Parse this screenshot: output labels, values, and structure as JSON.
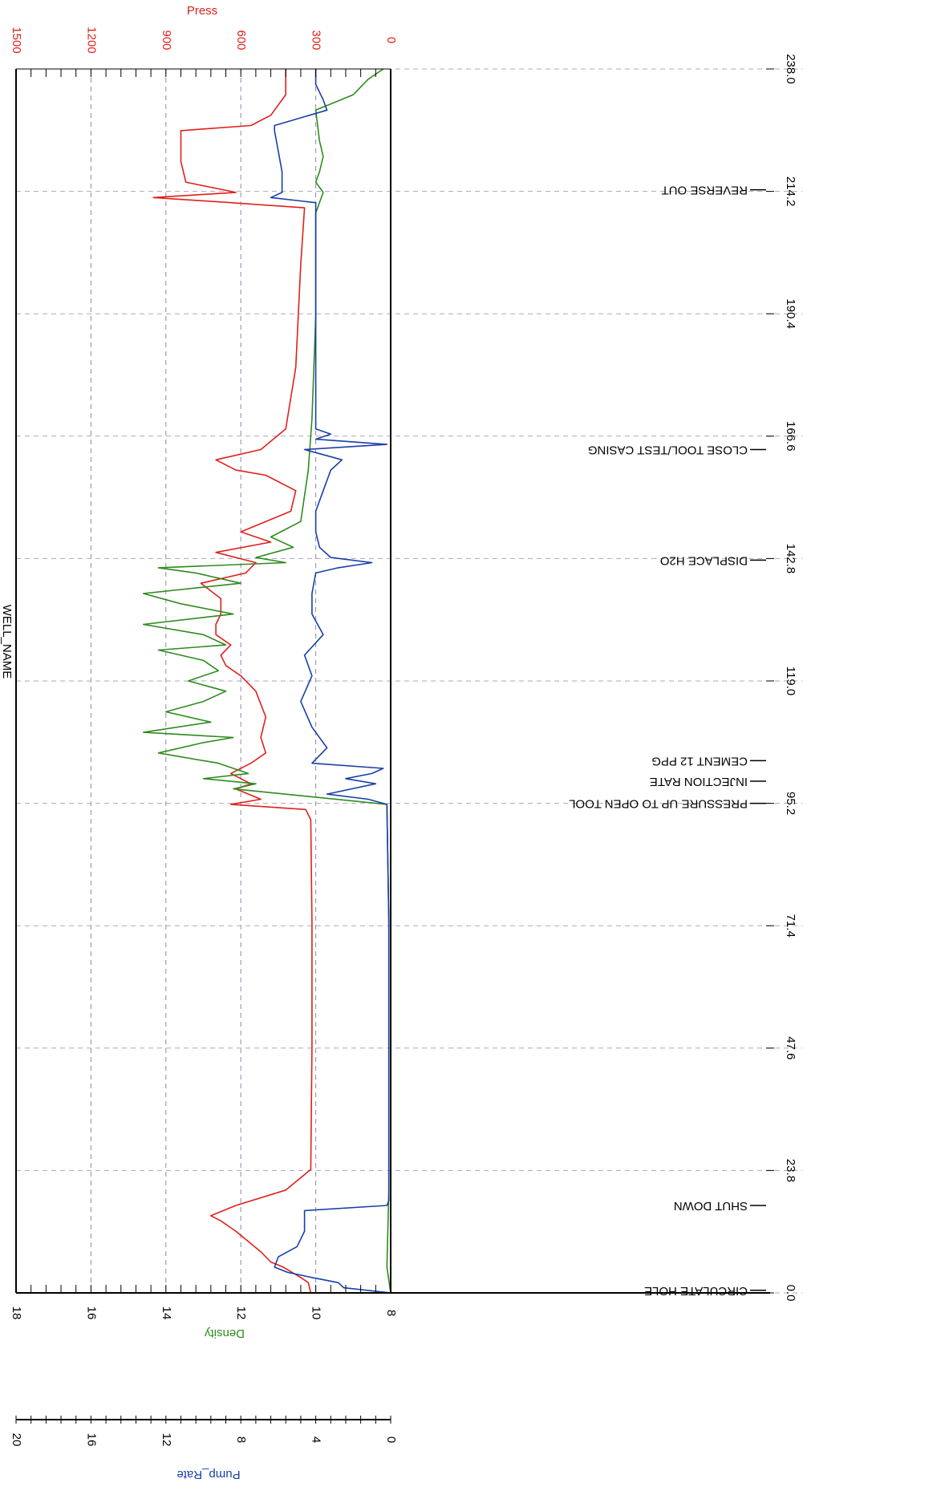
{
  "chart_data": {
    "type": "line",
    "title": "WELL_NAME",
    "rotated": "chart drawn rotated 90 degrees; time axis runs vertically",
    "x_axis": {
      "label": "",
      "ticks": [
        "0.0",
        "23.8",
        "47.6",
        "71.4",
        "95.2",
        "119.0",
        "142.8",
        "166.6",
        "190.4",
        "214.2",
        "238.0"
      ],
      "xlim": [
        0,
        238
      ]
    },
    "axes": {
      "press": {
        "label": "Press",
        "ticks": [
          "0",
          "300",
          "600",
          "900",
          "1200",
          "1500"
        ],
        "range": [
          0,
          1500
        ],
        "color": "#e0201c"
      },
      "density": {
        "label": "Density",
        "ticks": [
          "8",
          "10",
          "12",
          "14",
          "16",
          "18"
        ],
        "range": [
          8,
          18
        ],
        "color": "#2e8b1e"
      },
      "pump_rate": {
        "label": "Pump_Rate",
        "ticks": [
          "0",
          "4",
          "8",
          "12",
          "16",
          "20"
        ],
        "range": [
          0,
          20
        ],
        "color": "#1a3fa8"
      }
    },
    "grid": true,
    "series": [
      {
        "name": "Press",
        "color": "#e0201c",
        "axis": "press",
        "x": [
          0,
          2,
          3,
          5,
          6,
          8,
          10,
          12,
          14,
          15,
          17,
          20,
          24,
          48,
          72,
          92,
          94,
          95,
          96,
          98,
          99,
          101,
          103,
          105,
          108,
          112,
          117,
          120,
          122,
          124,
          126,
          128,
          130,
          132,
          135,
          138,
          140,
          142,
          144,
          146,
          148,
          152,
          156,
          159,
          160,
          162,
          164,
          168,
          180,
          200,
          211,
          212,
          213,
          214,
          216,
          220,
          226,
          227,
          229,
          233,
          238
        ],
        "values": [
          320,
          330,
          360,
          430,
          480,
          520,
          570,
          620,
          680,
          720,
          620,
          420,
          320,
          315,
          315,
          320,
          340,
          640,
          520,
          620,
          560,
          640,
          560,
          500,
          520,
          500,
          540,
          600,
          660,
          680,
          640,
          700,
          700,
          680,
          680,
          760,
          580,
          540,
          700,
          480,
          600,
          400,
          380,
          500,
          620,
          700,
          520,
          420,
          380,
          360,
          345,
          640,
          950,
          620,
          820,
          840,
          840,
          560,
          480,
          420,
          420
        ]
      },
      {
        "name": "Density",
        "color": "#2e8b1e",
        "axis": "density",
        "x": [
          0,
          5,
          20,
          48,
          72,
          95,
          98,
          99,
          100,
          101,
          103,
          105,
          107,
          108,
          109,
          111,
          113,
          115,
          117,
          119,
          121,
          123,
          125,
          126,
          128,
          130,
          132,
          134,
          136,
          138,
          140,
          141,
          142,
          143,
          145,
          147,
          150,
          160,
          170,
          190,
          210,
          214,
          216,
          218,
          221,
          224,
          230,
          233,
          236,
          238
        ],
        "values": [
          8.0,
          8.1,
          8.05,
          8.05,
          8.05,
          8.1,
          12.2,
          11.6,
          13.0,
          11.8,
          12.6,
          14.2,
          13.0,
          12.2,
          14.6,
          12.8,
          14.0,
          13.0,
          12.4,
          13.4,
          12.6,
          13.0,
          14.2,
          12.4,
          13.0,
          14.6,
          12.2,
          13.6,
          14.6,
          12.0,
          13.2,
          14.2,
          10.8,
          11.6,
          10.6,
          11.2,
          10.4,
          10.2,
          10.1,
          10.0,
          10.0,
          9.8,
          10.0,
          9.9,
          9.8,
          9.9,
          10.0,
          9.0,
          8.6,
          8.2
        ]
      },
      {
        "name": "Pump_Rate",
        "color": "#1a3fa8",
        "axis": "pump_rate",
        "x": [
          0,
          1,
          2,
          3,
          4,
          5,
          7,
          9,
          12,
          16,
          17,
          18,
          24,
          48,
          72,
          95,
          96,
          97,
          99,
          100,
          101,
          102,
          103,
          106,
          110,
          115,
          120,
          124,
          128,
          132,
          136,
          140,
          141,
          142,
          143,
          145,
          148,
          152,
          156,
          160,
          162,
          164,
          165,
          166,
          167,
          168,
          180,
          200,
          212,
          213,
          214,
          218,
          222,
          226,
          227,
          230,
          232,
          235,
          238
        ],
        "values": [
          0,
          2.5,
          2.8,
          4.2,
          5.5,
          6.2,
          6.0,
          5.0,
          4.6,
          4.6,
          0.2,
          0.1,
          0.1,
          0.1,
          0.1,
          0.2,
          1.2,
          3.4,
          0.8,
          2.4,
          1.0,
          0.4,
          4.2,
          3.4,
          4.2,
          4.8,
          4.2,
          4.6,
          3.6,
          4.2,
          4.2,
          4.0,
          2.8,
          1.0,
          3.2,
          3.8,
          4.0,
          4.0,
          3.6,
          3.2,
          2.6,
          4.6,
          0.2,
          4.0,
          3.2,
          4.0,
          4.0,
          4.0,
          4.0,
          6.4,
          5.8,
          5.8,
          6.0,
          6.2,
          6.2,
          3.4,
          3.6,
          4.0,
          4.0
        ]
      }
    ],
    "annotations": [
      {
        "x": 0.5,
        "label": "CIRCULATE HOLE"
      },
      {
        "x": 17,
        "label": "SHUT DOWN"
      },
      {
        "x": 95.2,
        "label": "PRESSURE UP TO OPEN TOOL"
      },
      {
        "x": 99.5,
        "label": "INJECTION RATE"
      },
      {
        "x": 103.5,
        "label": "CEMENT 12 PPG"
      },
      {
        "x": 142.5,
        "label": "DISPLACE H2O"
      },
      {
        "x": 164,
        "label": "CLOSE TOOL/TEST CASING"
      },
      {
        "x": 214.5,
        "label": "REVERSE OUT"
      }
    ]
  }
}
